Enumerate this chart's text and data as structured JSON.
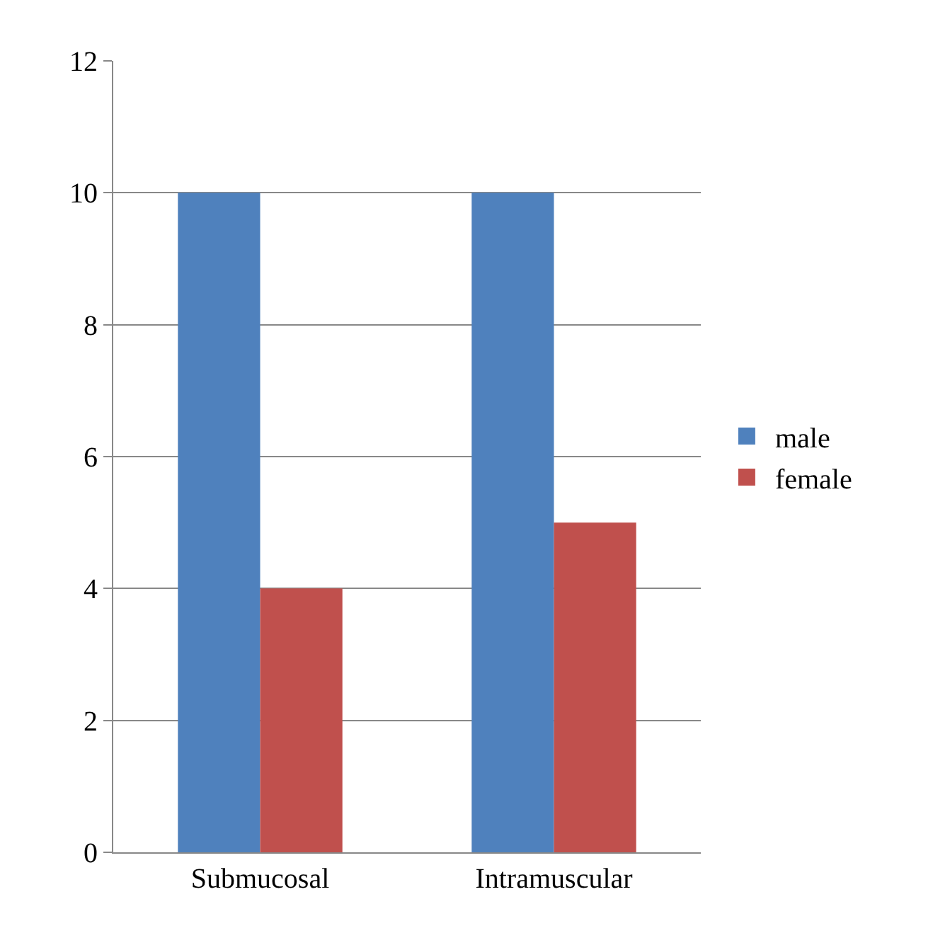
{
  "chart_data": {
    "type": "bar",
    "categories": [
      "Submucosal",
      "Intramuscular"
    ],
    "series": [
      {
        "name": "male",
        "color": "#4f81bd",
        "values": [
          10,
          10
        ]
      },
      {
        "name": "female",
        "color": "#c0504d",
        "values": [
          4,
          5
        ]
      }
    ],
    "ylim": [
      0,
      12
    ],
    "yticks": [
      0,
      2,
      4,
      6,
      8,
      10,
      12
    ],
    "grid": "y",
    "legend": "right"
  }
}
